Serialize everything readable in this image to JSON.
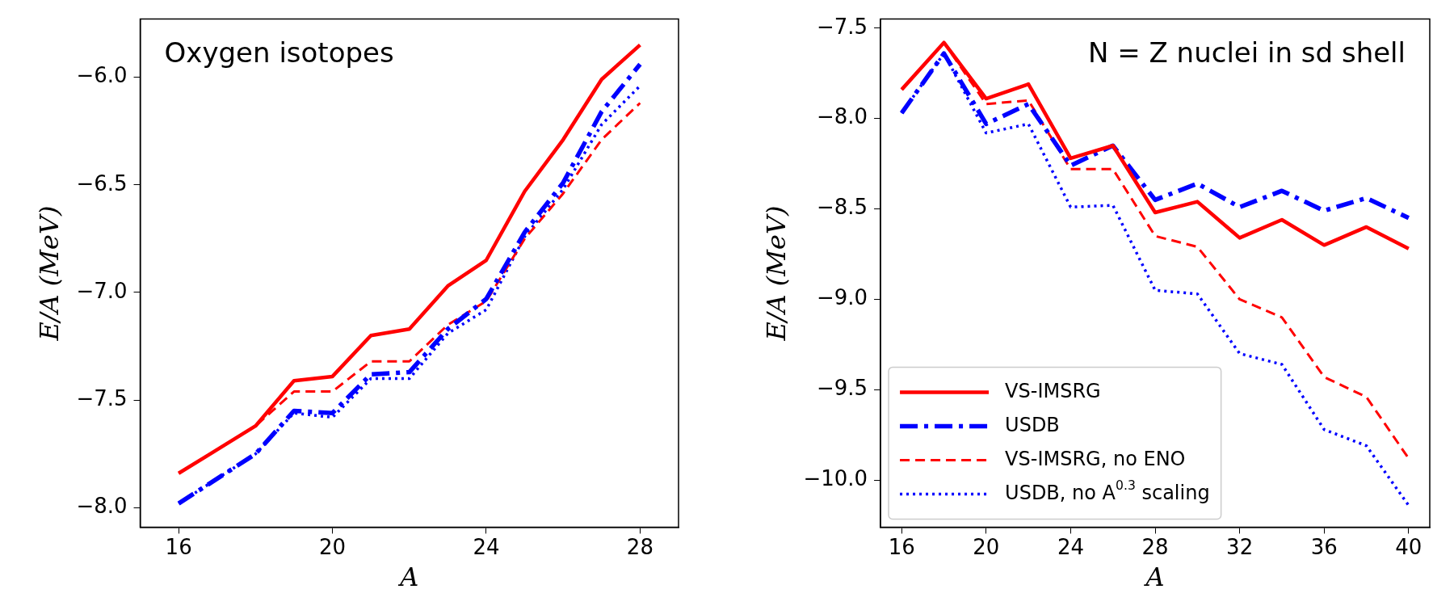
{
  "chart_data": [
    {
      "type": "line",
      "xlabel": "A",
      "ylabel": "E/A (MeV)",
      "annotations": [
        "Oxygen isotopes"
      ],
      "xlim": [
        15,
        29
      ],
      "xticks": [
        16,
        20,
        24,
        28
      ],
      "ylim": [
        -8.09,
        -5.73
      ],
      "yticks": [
        {
          "value": -8,
          "label": "−8.0"
        },
        {
          "value": -7.5,
          "label": "−7.5"
        },
        {
          "value": -7,
          "label": "−7.0"
        },
        {
          "value": -6.5,
          "label": "−6.5"
        },
        {
          "value": -6,
          "label": "−6.0"
        }
      ],
      "grid": false,
      "legend": false,
      "marker": "none",
      "x": [
        16,
        18,
        19,
        20,
        21,
        22,
        23,
        24,
        25,
        26,
        27,
        28
      ],
      "series": [
        {
          "color": "#ff0000",
          "line_style": "solid",
          "values": [
            -7.84,
            -7.62,
            -7.41,
            -7.39,
            -7.2,
            -7.17,
            -6.97,
            -6.85,
            -6.53,
            -6.29,
            -6.01,
            -5.85
          ]
        },
        {
          "color": "#0000ff",
          "line_style": "dashdot",
          "values": [
            -7.98,
            -7.75,
            -7.55,
            -7.56,
            -7.38,
            -7.37,
            -7.17,
            -7.03,
            -6.72,
            -6.49,
            -6.16,
            -5.94
          ]
        },
        {
          "color": "#ff0000",
          "line_style": "dashed",
          "values": [
            -7.84,
            -7.62,
            -7.46,
            -7.46,
            -7.32,
            -7.32,
            -7.15,
            -7.04,
            -6.75,
            -6.54,
            -6.29,
            -6.12
          ]
        },
        {
          "color": "#0000ff",
          "line_style": "dotted",
          "values": [
            -7.98,
            -7.75,
            -7.56,
            -7.58,
            -7.4,
            -7.4,
            -7.19,
            -7.08,
            -6.74,
            -6.52,
            -6.22,
            -6.04
          ]
        }
      ]
    },
    {
      "type": "line",
      "xlabel": "A",
      "ylabel": "E/A (MeV)",
      "annotations": [
        "N = Z nuclei in sd shell"
      ],
      "xlim": [
        15,
        41
      ],
      "xticks": [
        16,
        20,
        24,
        28,
        32,
        36,
        40
      ],
      "ylim": [
        -10.26,
        -7.45
      ],
      "yticks": [
        {
          "value": -10,
          "label": "−10.0"
        },
        {
          "value": -9.5,
          "label": "−9.5"
        },
        {
          "value": -9,
          "label": "−9.0"
        },
        {
          "value": -8.5,
          "label": "−8.5"
        },
        {
          "value": -8,
          "label": "−8.0"
        },
        {
          "value": -7.5,
          "label": "−7.5"
        }
      ],
      "grid": false,
      "legend": "bottom left",
      "marker": "none",
      "x": [
        16,
        18,
        20,
        22,
        24,
        26,
        28,
        30,
        32,
        34,
        36,
        38,
        40
      ],
      "series": [
        {
          "name": "VS-IMSRG",
          "color": "#ff0000",
          "line_style": "solid",
          "values": [
            -7.84,
            -7.58,
            -7.89,
            -7.81,
            -8.22,
            -8.15,
            -8.52,
            -8.46,
            -8.66,
            -8.56,
            -8.7,
            -8.6,
            -8.72
          ]
        },
        {
          "name": "USDB",
          "color": "#0000ff",
          "line_style": "dashdot",
          "values": [
            -7.97,
            -7.64,
            -8.03,
            -7.92,
            -8.26,
            -8.15,
            -8.45,
            -8.36,
            -8.49,
            -8.4,
            -8.51,
            -8.44,
            -8.55
          ]
        },
        {
          "name": "VS-IMSRG, no ENO",
          "color": "#ff0000",
          "line_style": "dashed",
          "values": [
            -7.84,
            -7.58,
            -7.92,
            -7.9,
            -8.28,
            -8.28,
            -8.65,
            -8.71,
            -9.0,
            -9.1,
            -9.43,
            -9.54,
            -9.88
          ]
        },
        {
          "name": "USDB, no A$^{0.3}$ scaling",
          "color": "#0000ff",
          "line_style": "dotted",
          "values": [
            -7.97,
            -7.64,
            -8.08,
            -8.03,
            -8.49,
            -8.48,
            -8.95,
            -8.97,
            -9.3,
            -9.36,
            -9.72,
            -9.81,
            -10.14
          ]
        }
      ]
    }
  ]
}
